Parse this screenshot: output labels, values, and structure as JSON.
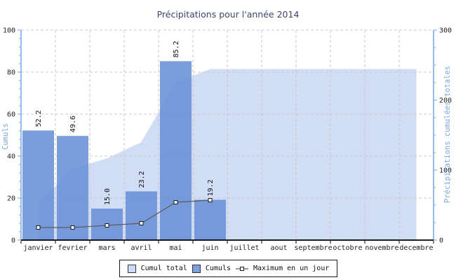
{
  "chart_data": {
    "type": "combo",
    "title": "Précipitations pour l'année 2014",
    "categories": [
      "janvier",
      "fevrier",
      "mars",
      "avril",
      "mai",
      "juin",
      "juillet",
      "aout",
      "septembre",
      "octobre",
      "novembre",
      "decembre"
    ],
    "series": [
      {
        "name": "Cumul total",
        "type": "area",
        "axis": "right",
        "values": [
          52.2,
          101.8,
          116.8,
          140.0,
          225.2,
          244.4,
          244.4,
          244.4,
          244.4,
          244.4,
          244.4,
          244.4
        ]
      },
      {
        "name": "Cumuls",
        "type": "bar",
        "axis": "left",
        "values": [
          52.2,
          49.6,
          15.0,
          23.2,
          85.2,
          19.2,
          null,
          null,
          null,
          null,
          null,
          null
        ],
        "data_labels": [
          "52.2",
          "49.6",
          "15.0",
          "23.2",
          "85.2",
          "19.2"
        ]
      },
      {
        "name": "Maximum en un jour",
        "type": "line",
        "axis": "left",
        "values": [
          6,
          6,
          7,
          8,
          18,
          19,
          null,
          null,
          null,
          null,
          null,
          null
        ]
      }
    ],
    "y_left": {
      "label": "Cumuls",
      "min": 0,
      "max": 100,
      "ticks": [
        0,
        20,
        40,
        60,
        80,
        100
      ],
      "minor_step": 4
    },
    "y_right": {
      "label": "Précipitations cumulées totales",
      "min": 0,
      "max": 300,
      "ticks": [
        0,
        100,
        200,
        300
      ],
      "minor_step": 25
    },
    "grid": "dashed",
    "legend_position": "bottom"
  },
  "legend": {
    "items": [
      {
        "label": "Cumul total",
        "swatch": "area"
      },
      {
        "label": "Cumuls",
        "swatch": "bar"
      },
      {
        "label": "Maximum en un jour",
        "swatch": "line-marker"
      }
    ]
  },
  "colors": {
    "bar_fill": "#6990d7",
    "bar_legend": "#7b9edc",
    "area_fill": "#d0ddf5",
    "area_legend": "#ccdbf6",
    "line": "#5c5c5c",
    "marker_fill": "#ffffff",
    "marker_stroke": "#1a1a1a",
    "axis_blue": "#79a5e5",
    "axis_title": "#7ba7de",
    "grid": "#c9c9c9",
    "tick_text": "#222222",
    "title_text": "#3d4568",
    "x_axis": "#000000",
    "value_label": "#111111"
  }
}
